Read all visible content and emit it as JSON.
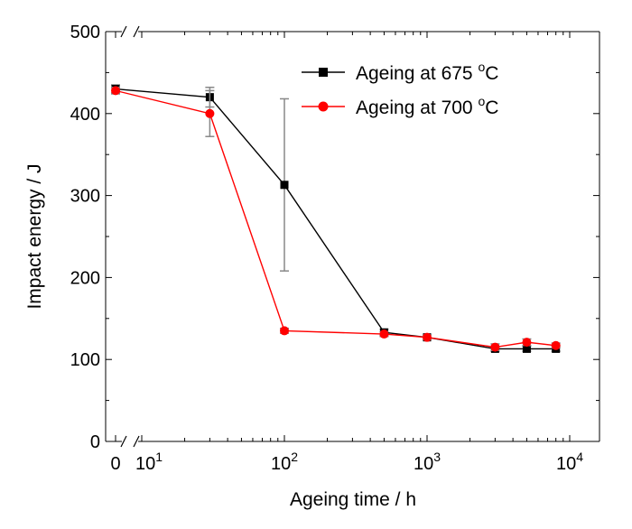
{
  "chart_data": {
    "type": "line",
    "x_scale": "log",
    "y_scale": "linear",
    "xlabel": "Ageing time / h",
    "ylabel": "Impact energy / J",
    "ylim": [
      0,
      500
    ],
    "xlim": [
      10,
      10000
    ],
    "axis_break": true,
    "x_ticks": [
      {
        "label": "0",
        "value": 0
      },
      {
        "base": "10",
        "exp": "1",
        "value": 10
      },
      {
        "base": "10",
        "exp": "2",
        "value": 100
      },
      {
        "base": "10",
        "exp": "3",
        "value": 1000
      },
      {
        "base": "10",
        "exp": "4",
        "value": 10000
      }
    ],
    "y_ticks": [
      {
        "label": "0",
        "value": 0
      },
      {
        "label": "100",
        "value": 100
      },
      {
        "label": "200",
        "value": 200
      },
      {
        "label": "300",
        "value": 300
      },
      {
        "label": "400",
        "value": 400
      },
      {
        "label": "500",
        "value": 500
      }
    ],
    "legend": {
      "placement": "top-right",
      "entries": [
        {
          "text": "Ageing at 675 ",
          "deg": "o",
          "unit": "C"
        },
        {
          "text": "Ageing at 700 ",
          "deg": "o",
          "unit": "C"
        }
      ]
    },
    "series": [
      {
        "name": "Ageing at 675 °C",
        "color": "#000000",
        "marker": "square",
        "x": [
          0,
          30,
          100,
          500,
          1000,
          3000,
          5000,
          8000
        ],
        "y": [
          430,
          420,
          313,
          133,
          127,
          113,
          113,
          113
        ],
        "error": [
          5,
          12,
          105,
          4,
          3,
          3,
          3,
          3
        ]
      },
      {
        "name": "Ageing at 700 °C",
        "color": "#ff0000",
        "marker": "circle",
        "x": [
          0,
          30,
          100,
          500,
          1000,
          3000,
          5000,
          8000
        ],
        "y": [
          428,
          400,
          135,
          131,
          127,
          115,
          121,
          117
        ],
        "error": [
          4,
          28,
          3,
          3,
          3,
          4,
          4,
          3
        ]
      }
    ]
  }
}
